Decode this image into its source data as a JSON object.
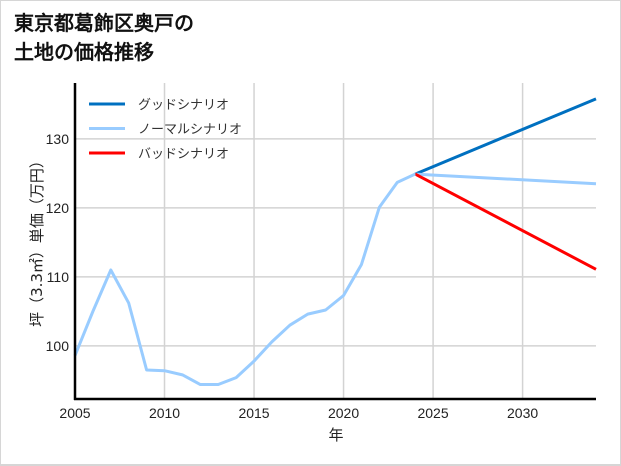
{
  "chart_data": {
    "type": "line",
    "title": "東京都葛飾区奥戸の\n土地の価格推移",
    "title_lines": [
      "東京都葛飾区奥戸の",
      "土地の価格推移"
    ],
    "xlabel": "年",
    "ylabel": "坪（3.3㎡）単価（万円）",
    "xlim": [
      2005,
      2034.1
    ],
    "ylim": [
      92.3,
      138.1
    ],
    "xticks": [
      2005,
      2010,
      2015,
      2020,
      2025,
      2030
    ],
    "yticks": [
      100,
      110,
      120,
      130
    ],
    "grid": true,
    "legend_position": "upper left",
    "history": {
      "x": [
        2005,
        2006,
        2007,
        2008,
        2009,
        2010,
        2011,
        2012,
        2013,
        2014,
        2015,
        2016,
        2017,
        2018,
        2019,
        2020,
        2021,
        2022,
        2023,
        2024
      ],
      "y": [
        98.6,
        105.0,
        111.0,
        106.2,
        96.5,
        96.4,
        95.8,
        94.4,
        94.4,
        95.4,
        97.8,
        100.6,
        103.0,
        104.6,
        105.2,
        107.3,
        111.8,
        120.1,
        123.7,
        124.9
      ],
      "color": "#99ccff"
    },
    "series": [
      {
        "name": "グッドシナリオ",
        "color": "#0070c0",
        "x": [
          2024,
          2034.1
        ],
        "y": [
          124.9,
          135.8
        ]
      },
      {
        "name": "ノーマルシナリオ",
        "color": "#99ccff",
        "x": [
          2024,
          2034.1
        ],
        "y": [
          124.9,
          123.5
        ]
      },
      {
        "name": "バッドシナリオ",
        "color": "#ff0000",
        "x": [
          2024,
          2034.1
        ],
        "y": [
          124.9,
          111.1
        ]
      }
    ]
  }
}
